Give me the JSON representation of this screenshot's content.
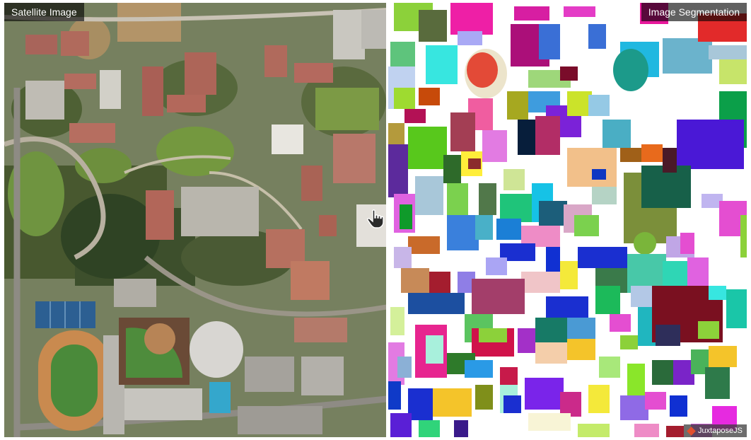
{
  "labels": {
    "left": "Satellite Image",
    "right": "Image Segmentation"
  },
  "credit": {
    "text": "JuxtaposeJS",
    "icon": "juxtapose-logo-icon"
  },
  "handle": {
    "icon": "hand-pointer-icon"
  },
  "colors": {
    "label_background": "#000000",
    "label_text": "#ffffff",
    "divider": "#ffffff"
  }
}
